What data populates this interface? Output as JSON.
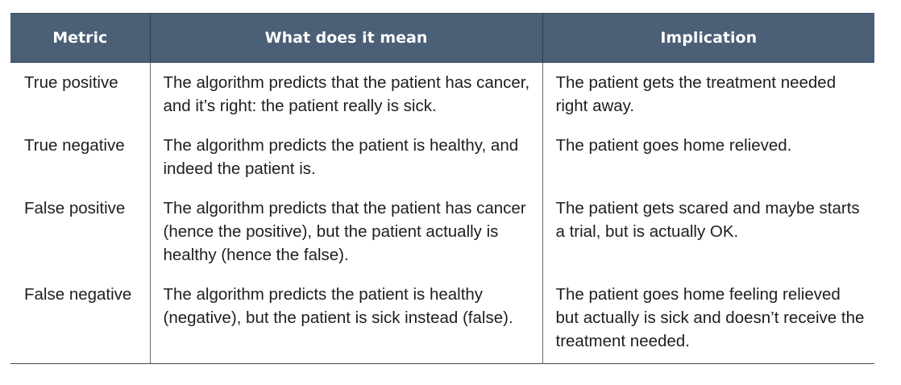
{
  "table": {
    "headers": {
      "metric": "Metric",
      "meaning": "What does it mean",
      "implication": "Implication"
    },
    "rows": [
      {
        "metric": "True positive",
        "meaning": "The algorithm predicts that the patient has cancer, and it’s right: the patient really is sick.",
        "implication": "The patient gets the treatment needed right away."
      },
      {
        "metric": "True negative",
        "meaning": "The algorithm predicts the patient is healthy, and indeed the patient is.",
        "implication": "The patient goes home relieved."
      },
      {
        "metric": "False positive",
        "meaning": "The algorithm predicts that the patient has cancer (hence the positive), but the patient actually is healthy (hence the false).",
        "implication": "The patient gets scared and maybe starts a trial, but is actually OK."
      },
      {
        "metric": "False negative",
        "meaning": "The algorithm predicts the patient is healthy (negative), but the patient is sick instead (false).",
        "implication": "The patient goes home feeling relieved but actually is sick and doesn’t receive the treatment needed."
      }
    ]
  },
  "colors": {
    "header_background": "#4b5f77",
    "header_text": "#ffffff",
    "body_text": "#1e1e1e"
  }
}
